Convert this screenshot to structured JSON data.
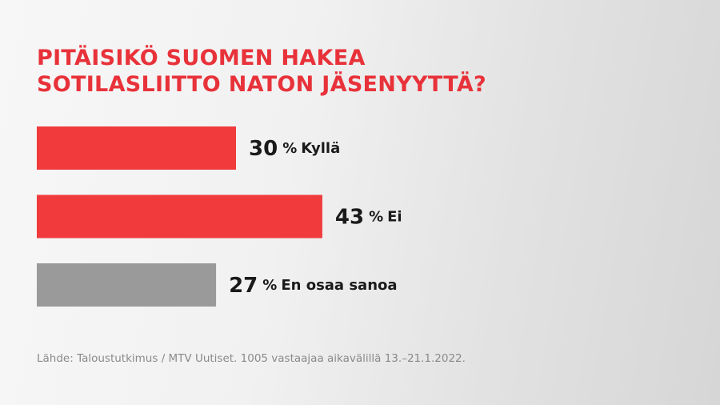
{
  "chart_data": {
    "type": "bar",
    "orientation": "horizontal",
    "title": "PITÄISIKÖ SUOMEN HAKEA SOTILASLIITTO NATON JÄSENYYTTÄ?",
    "categories": [
      "Kyllä",
      "Ei",
      "En osaa sanoa"
    ],
    "values": [
      30,
      43,
      27
    ],
    "unit": "%",
    "colors": [
      "#f03a3c",
      "#f03a3c",
      "#9a9a9a"
    ],
    "source": "Lähde: Taloustutkimus / MTV Uutiset. 1005 vastaajaa aikavälillä 13.–21.1.2022."
  }
}
